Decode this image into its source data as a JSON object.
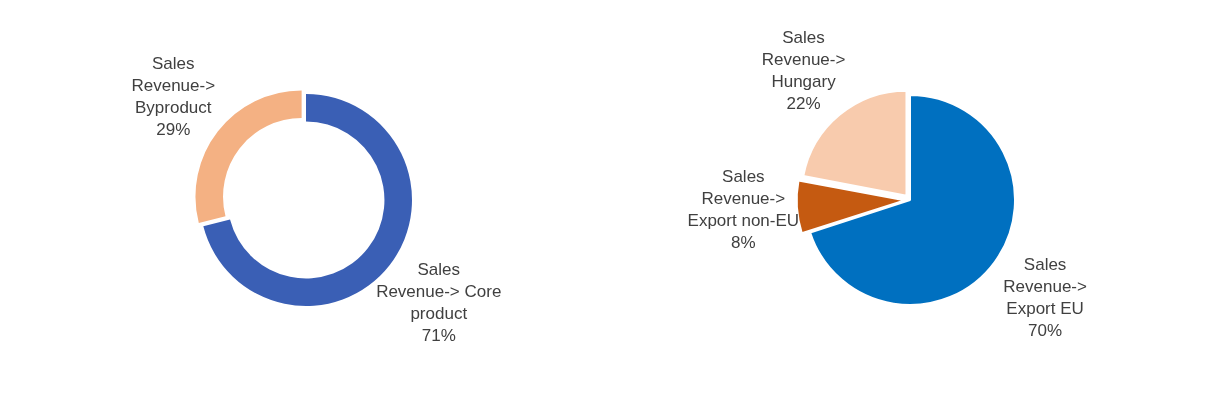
{
  "chart_data": [
    {
      "type": "donut",
      "categories": [
        "Sales Revenue-> Core product",
        "Sales Revenue-> Byproduct"
      ],
      "values": [
        71,
        29
      ],
      "colors": [
        "#3a5fb5",
        "#f4b183"
      ],
      "value_labels": [
        "71%",
        "29%"
      ],
      "legend": false
    },
    {
      "type": "pie",
      "categories": [
        "Sales Revenue-> Export EU",
        "Sales Revenue-> Export non-EU",
        "Sales Revenue-> Hungary"
      ],
      "values": [
        70,
        8,
        22
      ],
      "colors": [
        "#0070c0",
        "#c55a11",
        "#f8cbad"
      ],
      "value_labels": [
        "70%",
        "8%",
        "22%"
      ],
      "legend": false
    }
  ]
}
